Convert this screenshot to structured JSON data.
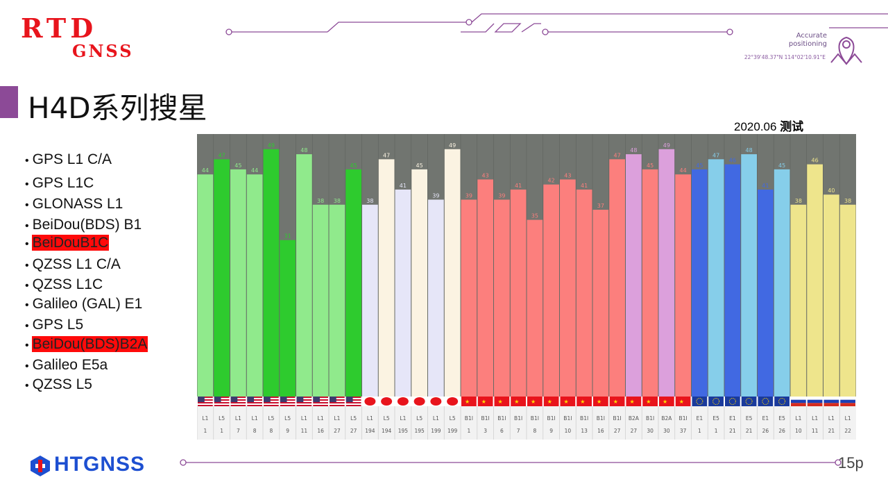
{
  "header": {
    "logo_line1": "RTD",
    "logo_line2": "GNSS",
    "tag_line1": "Accurate",
    "tag_line2": "positioning",
    "coordinates": "22°39'48.37\"N 114°02'10.91\"E"
  },
  "slide": {
    "title": "H4D系列搜星",
    "test_date": "2020.06",
    "test_word": "测试",
    "page_number": "15p",
    "footer_brand": "HTGNSS"
  },
  "signals": [
    {
      "label": "GPS L1 C/A",
      "highlight": false
    },
    {
      "label": "GPS L1C",
      "highlight": false
    },
    {
      "label": "GLONASS L1",
      "highlight": false
    },
    {
      "label": "BeiDou(BDS) B1",
      "highlight": false
    },
    {
      "label": "BeiDouB1C",
      "highlight": true
    },
    {
      "label": "QZSS  L1  C/A",
      "highlight": false
    },
    {
      "label": "QZSS  L1C",
      "highlight": false
    },
    {
      "label": "Galileo (GAL) E1",
      "highlight": false
    },
    {
      "label": "GPS L5",
      "highlight": false
    },
    {
      "label": "BeiDou(BDS)B2A",
      "highlight": true
    },
    {
      "label": "Galileo E5a",
      "highlight": false
    },
    {
      "label": "QZSS  L5",
      "highlight": false
    }
  ],
  "colors": {
    "accent": "#8c4a97",
    "chart_bg": "#717570",
    "gps_light": "#90ea8c",
    "gps_dark": "#2ecb2e",
    "qzss_l1": "#e6e6f8",
    "qzss_l5": "#fbf3e2",
    "beidou": "#fc7f7d",
    "beidou_b2a": "#dca0dc",
    "galileo_dark": "#4169e2",
    "galileo_light": "#86ceea",
    "glonass": "#eee58c"
  },
  "chart_data": {
    "type": "bar",
    "title": "",
    "ylim": [
      0,
      52
    ],
    "grid": false,
    "bars": [
      {
        "signal": "L1",
        "prn": "1",
        "value": 44,
        "color": "#90ea8c",
        "flag": "us"
      },
      {
        "signal": "L5",
        "prn": "1",
        "value": 47,
        "color": "#2ecb2e",
        "flag": "us"
      },
      {
        "signal": "L1",
        "prn": "7",
        "value": 45,
        "color": "#90ea8c",
        "flag": "us"
      },
      {
        "signal": "L1",
        "prn": "8",
        "value": 44,
        "color": "#90ea8c",
        "flag": "us"
      },
      {
        "signal": "L5",
        "prn": "8",
        "value": 49,
        "color": "#2ecb2e",
        "flag": "us"
      },
      {
        "signal": "L5",
        "prn": "9",
        "value": 31,
        "color": "#2ecb2e",
        "flag": "us"
      },
      {
        "signal": "L1",
        "prn": "11",
        "value": 48,
        "color": "#90ea8c",
        "flag": "us"
      },
      {
        "signal": "L1",
        "prn": "16",
        "value": 38,
        "color": "#90ea8c",
        "flag": "us"
      },
      {
        "signal": "L1",
        "prn": "27",
        "value": 38,
        "color": "#90ea8c",
        "flag": "us"
      },
      {
        "signal": "L5",
        "prn": "27",
        "value": 45,
        "color": "#2ecb2e",
        "flag": "us"
      },
      {
        "signal": "L1",
        "prn": "194",
        "value": 38,
        "color": "#e6e6f8",
        "flag": "jp"
      },
      {
        "signal": "L5",
        "prn": "194",
        "value": 47,
        "color": "#fbf3e2",
        "flag": "jp"
      },
      {
        "signal": "L1",
        "prn": "195",
        "value": 41,
        "color": "#e6e6f8",
        "flag": "jp"
      },
      {
        "signal": "L5",
        "prn": "195",
        "value": 45,
        "color": "#fbf3e2",
        "flag": "jp"
      },
      {
        "signal": "L1",
        "prn": "199",
        "value": 39,
        "color": "#e6e6f8",
        "flag": "jp"
      },
      {
        "signal": "L5",
        "prn": "199",
        "value": 49,
        "color": "#fbf3e2",
        "flag": "jp"
      },
      {
        "signal": "B1I",
        "prn": "1",
        "value": 39,
        "color": "#fc7f7d",
        "flag": "cn"
      },
      {
        "signal": "B1I",
        "prn": "3",
        "value": 43,
        "color": "#fc7f7d",
        "flag": "cn"
      },
      {
        "signal": "B1I",
        "prn": "6",
        "value": 39,
        "color": "#fc7f7d",
        "flag": "cn"
      },
      {
        "signal": "B1I",
        "prn": "7",
        "value": 41,
        "color": "#fc7f7d",
        "flag": "cn"
      },
      {
        "signal": "B1I",
        "prn": "8",
        "value": 35,
        "color": "#fc7f7d",
        "flag": "cn"
      },
      {
        "signal": "B1I",
        "prn": "9",
        "value": 42,
        "color": "#fc7f7d",
        "flag": "cn"
      },
      {
        "signal": "B1I",
        "prn": "10",
        "value": 43,
        "color": "#fc7f7d",
        "flag": "cn"
      },
      {
        "signal": "B1I",
        "prn": "13",
        "value": 41,
        "color": "#fc7f7d",
        "flag": "cn"
      },
      {
        "signal": "B1I",
        "prn": "16",
        "value": 37,
        "color": "#fc7f7d",
        "flag": "cn"
      },
      {
        "signal": "B1I",
        "prn": "27",
        "value": 47,
        "color": "#fc7f7d",
        "flag": "cn"
      },
      {
        "signal": "B2A",
        "prn": "27",
        "value": 48,
        "color": "#dca0dc",
        "flag": "cn"
      },
      {
        "signal": "B1I",
        "prn": "30",
        "value": 45,
        "color": "#fc7f7d",
        "flag": "cn"
      },
      {
        "signal": "B2A",
        "prn": "30",
        "value": 49,
        "color": "#dca0dc",
        "flag": "cn"
      },
      {
        "signal": "B1I",
        "prn": "37",
        "value": 44,
        "color": "#fc7f7d",
        "flag": "cn"
      },
      {
        "signal": "E1",
        "prn": "1",
        "value": 45,
        "color": "#4169e2",
        "flag": "eu"
      },
      {
        "signal": "E5",
        "prn": "1",
        "value": 47,
        "color": "#86ceea",
        "flag": "eu"
      },
      {
        "signal": "E1",
        "prn": "21",
        "value": 46,
        "color": "#4169e2",
        "flag": "eu"
      },
      {
        "signal": "E5",
        "prn": "21",
        "value": 48,
        "color": "#86ceea",
        "flag": "eu"
      },
      {
        "signal": "E1",
        "prn": "26",
        "value": 41,
        "color": "#4169e2",
        "flag": "eu"
      },
      {
        "signal": "E5",
        "prn": "26",
        "value": 45,
        "color": "#86ceea",
        "flag": "eu"
      },
      {
        "signal": "L1",
        "prn": "10",
        "value": 38,
        "color": "#eee58c",
        "flag": "ru"
      },
      {
        "signal": "L1",
        "prn": "11",
        "value": 46,
        "color": "#eee58c",
        "flag": "ru"
      },
      {
        "signal": "L1",
        "prn": "21",
        "value": 40,
        "color": "#eee58c",
        "flag": "ru"
      },
      {
        "signal": "L1",
        "prn": "22",
        "value": 38,
        "color": "#eee58c",
        "flag": "ru"
      }
    ]
  }
}
